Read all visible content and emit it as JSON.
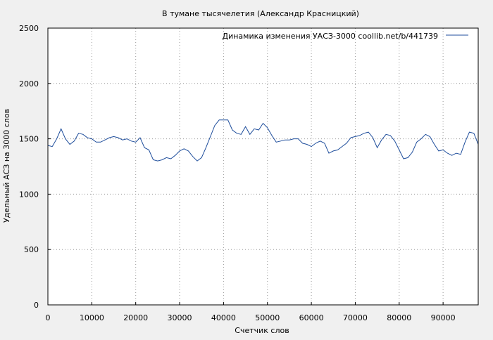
{
  "chart_data": {
    "type": "line",
    "title": "В тумане тысячелетия (Александр Красницкий)",
    "xlabel": "Счетчик слов",
    "ylabel": "Удельный АСЗ на 3000  слов",
    "xlim": [
      0,
      98000
    ],
    "ylim": [
      0,
      2500
    ],
    "x_ticks": [
      0,
      10000,
      20000,
      30000,
      40000,
      50000,
      60000,
      70000,
      80000,
      90000
    ],
    "y_ticks": [
      0,
      500,
      1000,
      1500,
      2000,
      2500
    ],
    "grid": true,
    "legend_position": "top-right",
    "series": [
      {
        "name": "Динамика изменения УАСЗ-3000  coollib.net/b/441739",
        "color": "#1f4e9c",
        "x": [
          0,
          1000,
          2000,
          3000,
          4000,
          5000,
          6000,
          7000,
          8000,
          9000,
          10000,
          11000,
          12000,
          13000,
          14000,
          15000,
          16000,
          17000,
          18000,
          19000,
          20000,
          21000,
          22000,
          23000,
          24000,
          25000,
          26000,
          27000,
          28000,
          29000,
          30000,
          31000,
          32000,
          33000,
          34000,
          35000,
          36000,
          37000,
          38000,
          39000,
          40000,
          41000,
          42000,
          43000,
          44000,
          45000,
          46000,
          47000,
          48000,
          49000,
          50000,
          51000,
          52000,
          53000,
          54000,
          55000,
          56000,
          57000,
          58000,
          59000,
          60000,
          61000,
          62000,
          63000,
          64000,
          65000,
          66000,
          67000,
          68000,
          69000,
          70000,
          71000,
          72000,
          73000,
          74000,
          75000,
          76000,
          77000,
          78000,
          79000,
          80000,
          81000,
          82000,
          83000,
          84000,
          85000,
          86000,
          87000,
          88000,
          89000,
          90000,
          91000,
          92000,
          93000,
          94000,
          95000,
          96000,
          97000,
          98000
        ],
        "y": [
          1440,
          1430,
          1500,
          1590,
          1500,
          1450,
          1480,
          1550,
          1540,
          1510,
          1500,
          1470,
          1470,
          1490,
          1510,
          1520,
          1510,
          1490,
          1500,
          1480,
          1470,
          1510,
          1420,
          1400,
          1310,
          1300,
          1310,
          1330,
          1320,
          1350,
          1390,
          1410,
          1390,
          1340,
          1300,
          1330,
          1420,
          1520,
          1620,
          1670,
          1670,
          1670,
          1580,
          1550,
          1540,
          1610,
          1540,
          1590,
          1580,
          1640,
          1600,
          1530,
          1470,
          1480,
          1490,
          1490,
          1500,
          1500,
          1460,
          1450,
          1430,
          1460,
          1480,
          1460,
          1370,
          1390,
          1400,
          1430,
          1460,
          1510,
          1520,
          1530,
          1550,
          1560,
          1510,
          1420,
          1490,
          1540,
          1530,
          1480,
          1400,
          1320,
          1330,
          1380,
          1470,
          1500,
          1540,
          1520,
          1450,
          1390,
          1400,
          1370,
          1350,
          1370,
          1360,
          1470,
          1560,
          1550,
          1450
        ]
      }
    ]
  }
}
